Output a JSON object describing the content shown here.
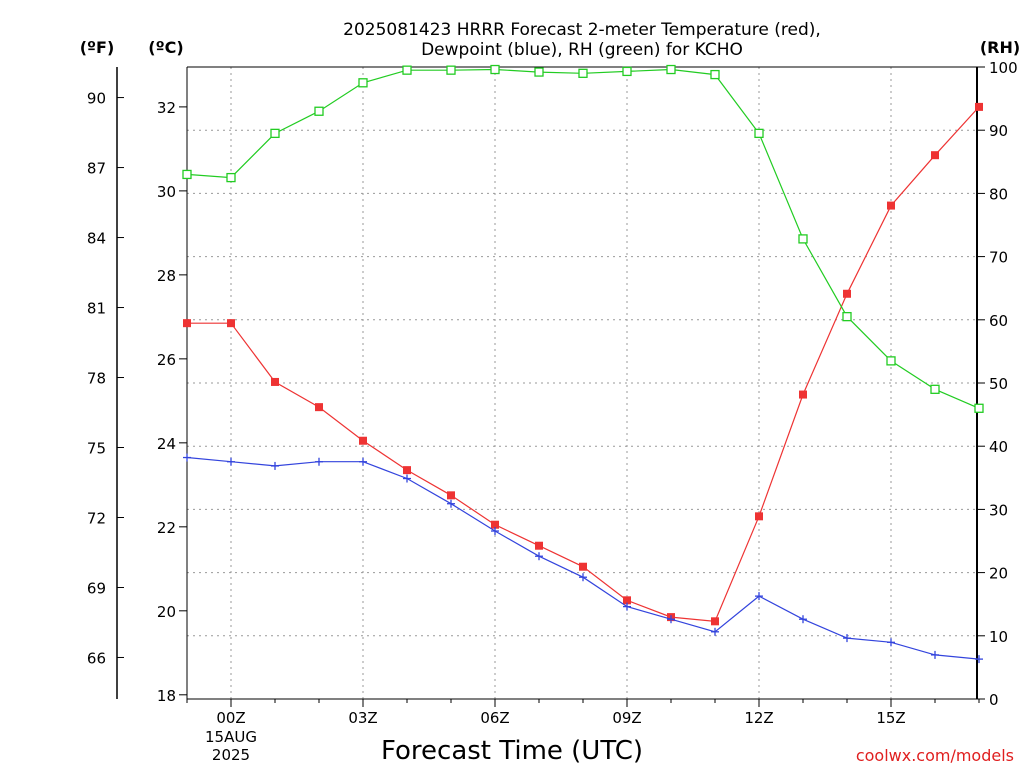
{
  "chart_data": {
    "type": "line",
    "title_line1": "2025081423 HRRR Forecast 2-meter Temperature (red),",
    "title_line2": "Dewpoint (blue), RH (green) for KCHO",
    "xlabel": "Forecast Time (UTC)",
    "credit": "coolwx.com/models",
    "units": {
      "f": "(ºF)",
      "c": "(ºC)",
      "rh": "(RH)"
    },
    "x_ticks": [
      "00Z",
      "03Z",
      "06Z",
      "09Z",
      "12Z",
      "15Z"
    ],
    "x_date_line1": "15AUG",
    "x_date_line2": "2025",
    "c_ticks": [
      "18",
      "20",
      "22",
      "24",
      "26",
      "28",
      "30",
      "32"
    ],
    "f_ticks": [
      "66",
      "69",
      "72",
      "75",
      "78",
      "81",
      "84",
      "87",
      "90"
    ],
    "rh_ticks": [
      "0",
      "10",
      "20",
      "30",
      "40",
      "50",
      "60",
      "70",
      "80",
      "90",
      "100"
    ],
    "x_hours_from_00z": [
      -1,
      0,
      1,
      2,
      3,
      4,
      5,
      6,
      7,
      8,
      9,
      10,
      11,
      12,
      13,
      14,
      15,
      16,
      17
    ],
    "ylim_c": [
      17.9,
      32.95
    ],
    "ylim_rh": [
      0,
      100
    ],
    "grid": true,
    "series": [
      {
        "color": "#ee3333",
        "axis": "c",
        "marker": "filled-square",
        "values": [
          26.85,
          26.85,
          25.45,
          24.85,
          24.05,
          23.35,
          22.75,
          22.05,
          21.55,
          21.05,
          20.25,
          19.85,
          19.75,
          22.25,
          25.15,
          27.55,
          29.65,
          30.85,
          32.0
        ]
      },
      {
        "color": "#3344dd",
        "axis": "c",
        "marker": "plus",
        "values": [
          23.65,
          23.55,
          23.45,
          23.55,
          23.55,
          23.15,
          22.55,
          21.9,
          21.3,
          20.8,
          20.1,
          19.8,
          19.5,
          20.35,
          19.8,
          19.35,
          19.25,
          18.95,
          18.85
        ]
      },
      {
        "color": "#22cc22",
        "axis": "rh",
        "marker": "open-square",
        "values": [
          83,
          82.5,
          89.5,
          93,
          97.5,
          99.5,
          99.5,
          99.6,
          99.2,
          99,
          99.3,
          99.6,
          98.8,
          89.5,
          72.8,
          60.5,
          53.5,
          49,
          46
        ]
      }
    ]
  }
}
